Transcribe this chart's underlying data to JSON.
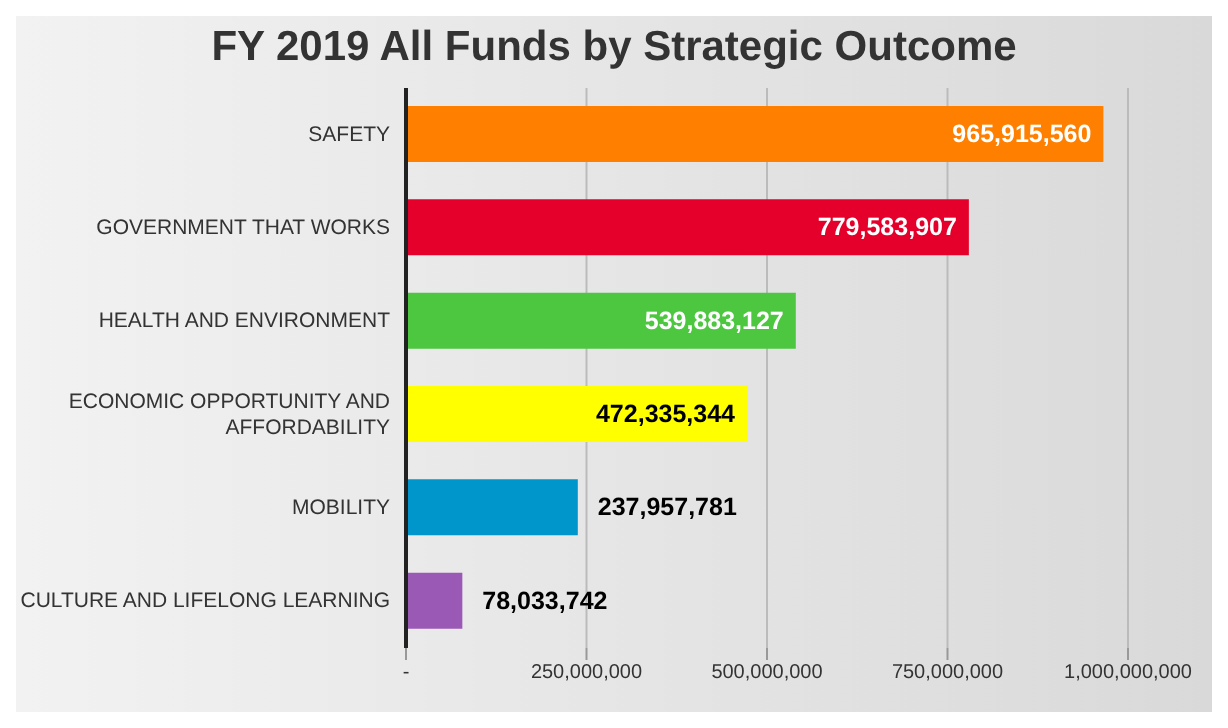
{
  "chart_data": {
    "type": "bar",
    "orientation": "horizontal",
    "title": "FY 2019 All Funds by Strategic Outcome",
    "categories": [
      "SAFETY",
      "GOVERNMENT THAT WORKS",
      "HEALTH AND ENVIRONMENT",
      "ECONOMIC OPPORTUNITY AND AFFORDABILITY",
      "MOBILITY",
      "CULTURE AND LIFELONG LEARNING"
    ],
    "values": [
      965915560,
      779583907,
      539883127,
      472335344,
      237957781,
      78033742
    ],
    "colors": [
      "#ff8000",
      "#e4002b",
      "#4cc73f",
      "#ffff00",
      "#0096cc",
      "#9b59b6"
    ],
    "xlim": [
      0,
      1000000000
    ],
    "value_labels": [
      "965,915,560",
      "779,583,907",
      "539,883,127",
      "472,335,344",
      "237,957,781",
      "78,033,742"
    ],
    "xticks": [
      {
        "value": 0,
        "label": "-"
      },
      {
        "value": 250000000,
        "label": "250,000,000"
      },
      {
        "value": 500000000,
        "label": "500,000,000"
      },
      {
        "value": 750000000,
        "label": "750,000,000"
      },
      {
        "value": 1000000000,
        "label": "1,000,000,000"
      }
    ],
    "grid": "x"
  }
}
